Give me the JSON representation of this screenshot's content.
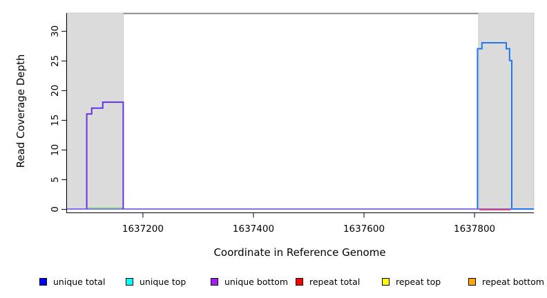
{
  "chart_data": {
    "type": "line",
    "subtype": "step-coverage",
    "title": "",
    "xlabel": "Coordinate in Reference Genome",
    "ylabel": "Read Coverage Depth",
    "xlim": [
      1637062,
      1637908
    ],
    "ylim": [
      0,
      33
    ],
    "x_ticks": [
      1637200,
      1637400,
      1637600,
      1637800
    ],
    "y_ticks": [
      0,
      5,
      10,
      15,
      20,
      25,
      30
    ],
    "grid": false,
    "shaded_regions": [
      {
        "name": "left-gray-region",
        "x0": 1637062,
        "x1": 1637165,
        "color": "#DBDBDB",
        "edge": "#C9C9C9"
      },
      {
        "name": "right-gray-region",
        "x0": 1637808,
        "x1": 1637908,
        "color": "#DBDBDB",
        "edge": "#C9C9C9"
      }
    ],
    "top_boundary": {
      "y": 33,
      "color": "#7A7A7A"
    },
    "series": [
      {
        "name": "zero-depth-baseline",
        "color": "#7A5CEC",
        "width": 1.7,
        "dy": 0,
        "points": [
          [
            1637062,
            0
          ],
          [
            1637908,
            0
          ]
        ]
      },
      {
        "name": "left-block-zero-line-green",
        "color": "#70D070",
        "width": 1.7,
        "dy": -1.2,
        "points": [
          [
            1637102,
            0
          ],
          [
            1637164,
            0
          ]
        ]
      },
      {
        "name": "right-block-zero-line-red",
        "color": "#E93A4C",
        "width": 1.7,
        "dy": 1.0,
        "points": [
          [
            1637809,
            0
          ],
          [
            1637866,
            0
          ]
        ]
      },
      {
        "name": "left-block-coverage-unique-bottom",
        "color": "#6333E6",
        "width": 2,
        "dy": 0,
        "points": [
          [
            1637099,
            0
          ],
          [
            1637099,
            16
          ],
          [
            1637108,
            16
          ],
          [
            1637108,
            17
          ],
          [
            1637128,
            17
          ],
          [
            1637128,
            18
          ],
          [
            1637165,
            18
          ],
          [
            1637165,
            0
          ]
        ]
      },
      {
        "name": "right-block-coverage-unique-total",
        "color": "#1F78F0",
        "width": 2,
        "dy": 0,
        "points": [
          [
            1637806,
            0
          ],
          [
            1637806,
            27
          ],
          [
            1637814,
            27
          ],
          [
            1637814,
            28
          ],
          [
            1637858,
            28
          ],
          [
            1637858,
            27
          ],
          [
            1637864,
            27
          ],
          [
            1637864,
            25
          ],
          [
            1637868,
            25
          ],
          [
            1637868,
            0
          ],
          [
            1637908,
            0
          ]
        ]
      }
    ],
    "legend_position": "bottom"
  },
  "legend": {
    "items": [
      {
        "label": "unique total",
        "color": "#0000FF"
      },
      {
        "label": "unique top",
        "color": "#00FFFF"
      },
      {
        "label": "unique bottom",
        "color": "#A020F0"
      },
      {
        "label": "repeat total",
        "color": "#FF0000"
      },
      {
        "label": "repeat top",
        "color": "#FFFF00"
      },
      {
        "label": "repeat bottom",
        "color": "#FFA500"
      }
    ]
  },
  "axis_color": "#000000"
}
